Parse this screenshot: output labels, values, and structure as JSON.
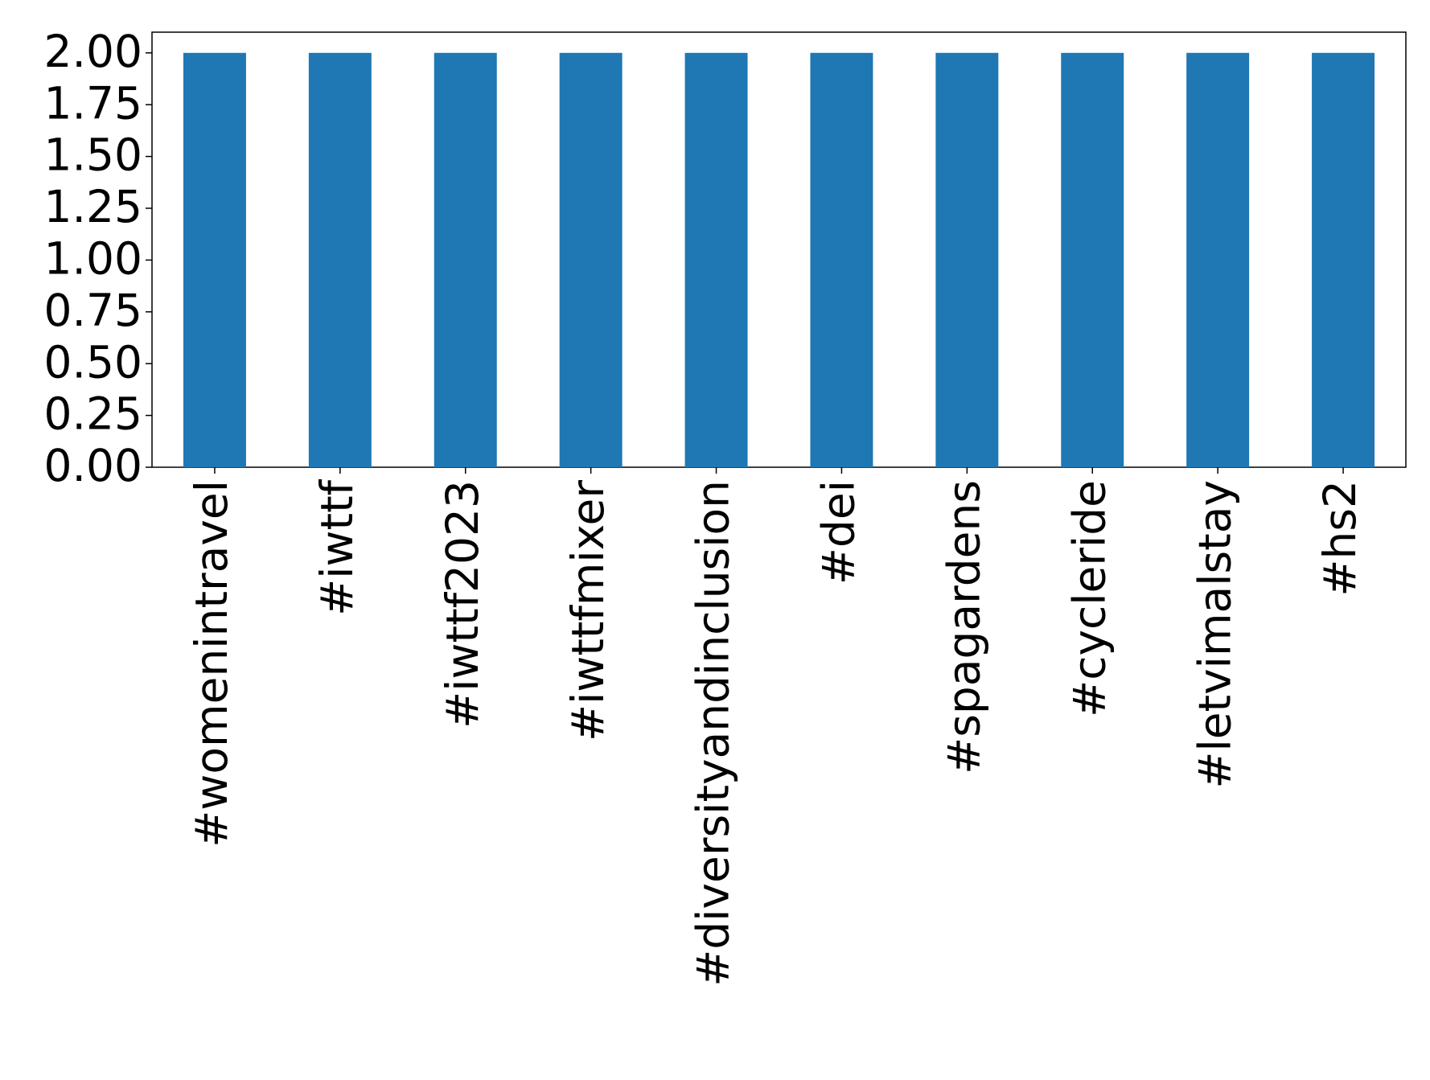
{
  "chart_data": {
    "type": "bar",
    "categories": [
      "#womenintravel",
      "#iwttf",
      "#iwttf2023",
      "#iwttfmixer",
      "#diversityandinclusion",
      "#dei",
      "#spagardens",
      "#cycleride",
      "#letvimalstay",
      "#hs2"
    ],
    "values": [
      2,
      2,
      2,
      2,
      2,
      2,
      2,
      2,
      2,
      2
    ],
    "color": "#1f77b4",
    "ylim": [
      0,
      2.1
    ],
    "yticks": [
      {
        "value": 0,
        "label": "0.00"
      },
      {
        "value": 0.25,
        "label": "0.25"
      },
      {
        "value": 0.5,
        "label": "0.50"
      },
      {
        "value": 0.75,
        "label": "0.75"
      },
      {
        "value": 1,
        "label": "1.00"
      },
      {
        "value": 1.25,
        "label": "1.25"
      },
      {
        "value": 1.5,
        "label": "1.50"
      },
      {
        "value": 1.75,
        "label": "1.75"
      },
      {
        "value": 2,
        "label": "2.00"
      }
    ],
    "grid": false
  }
}
